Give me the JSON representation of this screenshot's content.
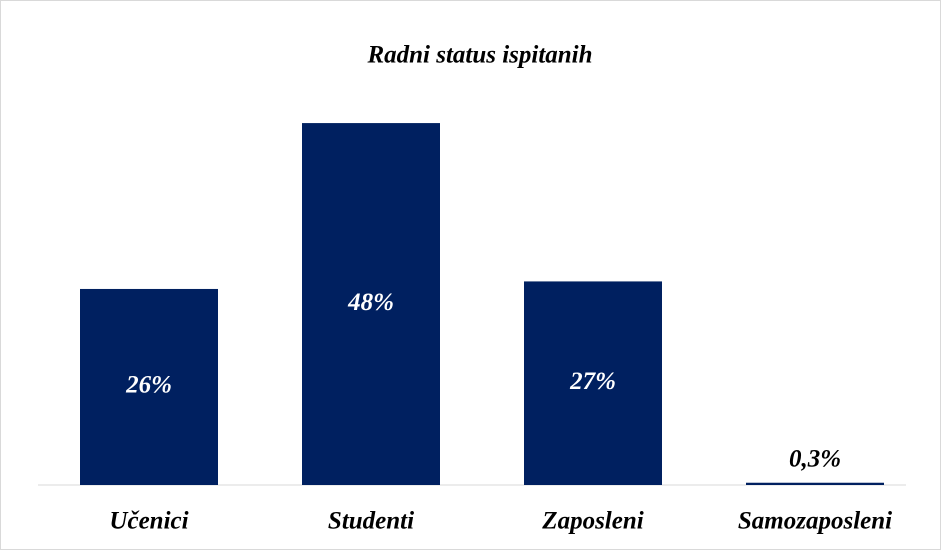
{
  "chart_data": {
    "type": "bar",
    "title": "Radni status ispitanih",
    "categories": [
      "Učenici",
      "Studenti",
      "Zaposleni",
      "Samozaposleni"
    ],
    "values": [
      26,
      48,
      27,
      0.3
    ],
    "value_labels": [
      "26%",
      "48%",
      "27%",
      "0,3%"
    ],
    "color": "#002060",
    "ylim": [
      0,
      50
    ]
  }
}
